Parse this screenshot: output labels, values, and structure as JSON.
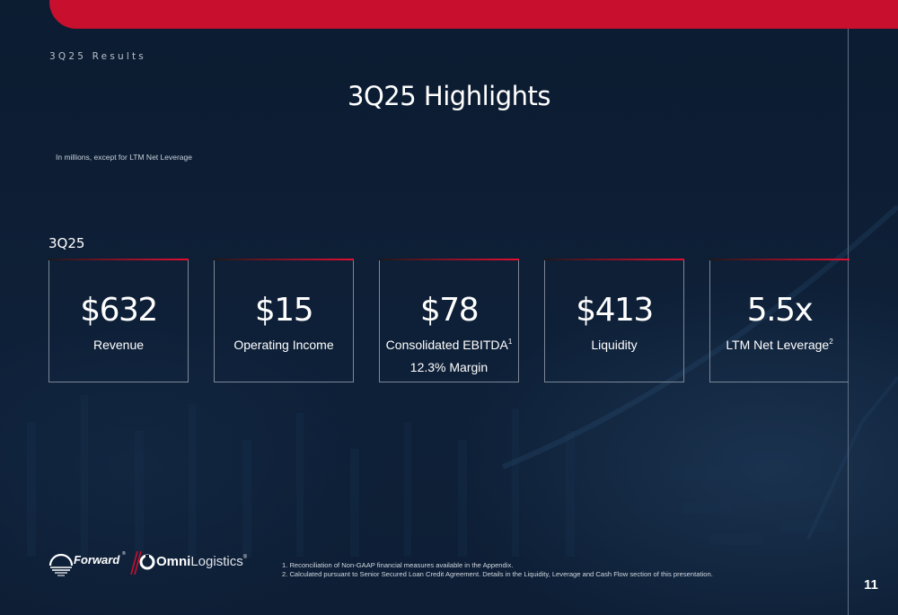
{
  "header": {
    "section_label": "3Q25 Results",
    "title": "3Q25 Highlights",
    "units_note": "In millions, except for LTM Net Leverage"
  },
  "period_label": "3Q25",
  "colors": {
    "accent_red": "#c8102e",
    "background_navy": "#0d1d33"
  },
  "metrics": [
    {
      "value": "$632",
      "label": "Revenue",
      "footnote": "",
      "sub": ""
    },
    {
      "value": "$15",
      "label": "Operating Income",
      "footnote": "",
      "sub": ""
    },
    {
      "value": "$78",
      "label": "Consolidated EBITDA",
      "footnote": "1",
      "sub": "12.3% Margin"
    },
    {
      "value": "$413",
      "label": "Liquidity",
      "footnote": "",
      "sub": ""
    },
    {
      "value": "5.5x",
      "label": "LTM Net Leverage",
      "footnote": "2",
      "sub": ""
    }
  ],
  "logos": {
    "forward": "Forward",
    "omni_bold": "Omni",
    "omni_light": "Logistics"
  },
  "footnotes": [
    "1. Reconciliation of Non-GAAP financial measures available in the Appendix.",
    "2. Calculated pursuant to Senior Secured Loan Credit Agreement. Details in the Liquidity, Leverage and Cash Flow section of this presentation."
  ],
  "page_number": "11"
}
